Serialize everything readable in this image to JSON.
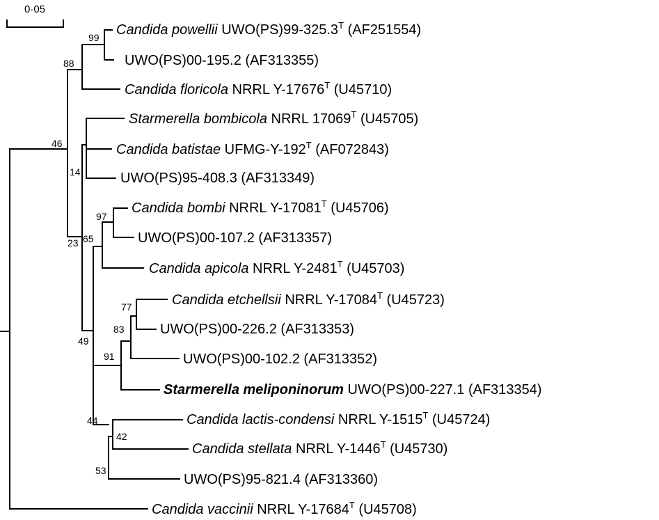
{
  "scale_bar": {
    "label": "0·05"
  },
  "taxa": [
    {
      "genus_species": "Candida powellii",
      "strain": "UWO(PS)99-325.3",
      "type": true,
      "accession": "(AF251554)"
    },
    {
      "genus_species": "",
      "strain": "UWO(PS)00-195.2",
      "type": false,
      "accession": "(AF313355)"
    },
    {
      "genus_species": "Candida floricola",
      "strain": "NRRL Y-17676",
      "type": true,
      "accession": "(U45710)"
    },
    {
      "genus_species": "Starmerella bombicola",
      "strain": "NRRL 17069",
      "type": true,
      "accession": "(U45705)"
    },
    {
      "genus_species": "Candida batistae",
      "strain": "UFMG-Y-192",
      "type": true,
      "accession": "(AF072843)"
    },
    {
      "genus_species": "",
      "strain": "UWO(PS)95-408.3",
      "type": false,
      "accession": "(AF313349)"
    },
    {
      "genus_species": "Candida bombi",
      "strain": "NRRL Y-17081",
      "type": true,
      "accession": "(U45706)"
    },
    {
      "genus_species": "",
      "strain": "UWO(PS)00-107.2",
      "type": false,
      "accession": "(AF313357)"
    },
    {
      "genus_species": "Candida apicola",
      "strain": "NRRL Y-2481",
      "type": true,
      "accession": "(U45703)"
    },
    {
      "genus_species": "Candida etchellsii",
      "strain": "NRRL Y-17084",
      "type": true,
      "accession": "(U45723)"
    },
    {
      "genus_species": "",
      "strain": "UWO(PS)00-226.2",
      "type": false,
      "accession": "(AF313353)"
    },
    {
      "genus_species": "",
      "strain": "UWO(PS)00-102.2",
      "type": false,
      "accession": "(AF313352)"
    },
    {
      "genus_species": "Starmerella meliponinorum",
      "strain": "UWO(PS)00-227.1",
      "type": false,
      "accession": "(AF313354)",
      "bold": true
    },
    {
      "genus_species": "Candida lactis-condensi",
      "strain": "NRRL Y-1515",
      "type": true,
      "accession": "(U45724)"
    },
    {
      "genus_species": "Candida stellata",
      "strain": "NRRL Y-1446",
      "type": true,
      "accession": "(U45730)"
    },
    {
      "genus_species": "",
      "strain": "UWO(PS)95-821.4",
      "type": false,
      "accession": "(AF313360)"
    },
    {
      "genus_species": "Candida vaccinii",
      "strain": "NRRL Y-17684",
      "type": true,
      "accession": "(U45708)"
    }
  ],
  "type_marker": "T",
  "bootstrap": [
    "99",
    "88",
    "46",
    "14",
    "23",
    "97",
    "65",
    "77",
    "83",
    "91",
    "49",
    "42",
    "44",
    "53"
  ]
}
